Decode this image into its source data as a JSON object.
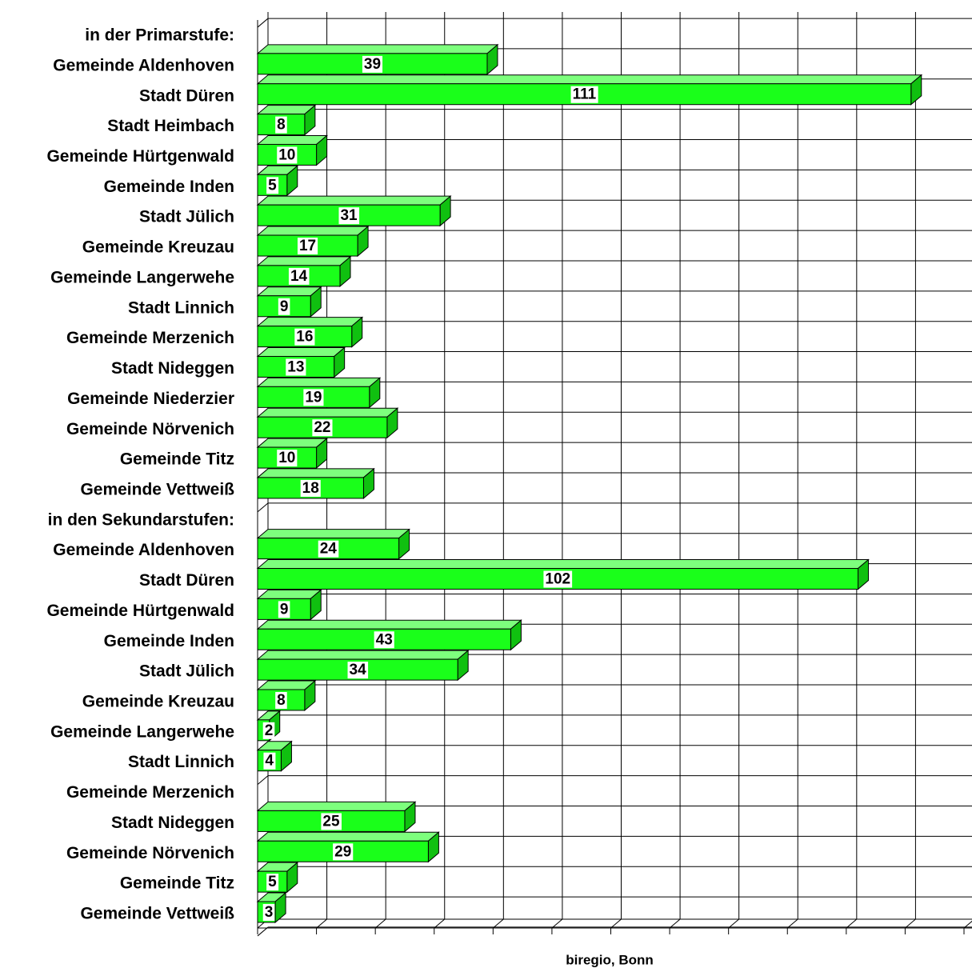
{
  "chart_data": {
    "type": "bar",
    "orientation": "horizontal",
    "categories": [
      "in der Primarstufe:",
      "Gemeinde Aldenhoven",
      "Stadt Düren",
      "Stadt Heimbach",
      "Gemeinde Hürtgenwald",
      "Gemeinde Inden",
      "Stadt Jülich",
      "Gemeinde Kreuzau",
      "Gemeinde Langerwehe",
      "Stadt Linnich",
      "Gemeinde Merzenich",
      "Stadt Nideggen",
      "Gemeinde Niederzier",
      "Gemeinde Nörvenich",
      "Gemeinde Titz",
      "Gemeinde Vettweiß",
      "in den Sekundarstufen:",
      "Gemeinde Aldenhoven",
      "Stadt Düren",
      "Gemeinde Hürtgenwald",
      "Gemeinde Inden",
      "Stadt Jülich",
      "Gemeinde Kreuzau",
      "Gemeinde Langerwehe",
      "Stadt Linnich",
      "Gemeinde Merzenich",
      "Stadt Nideggen",
      "Gemeinde Nörvenich",
      "Gemeinde Titz",
      "Gemeinde Vettweiß"
    ],
    "values": [
      null,
      39,
      111,
      8,
      10,
      5,
      31,
      17,
      14,
      9,
      16,
      13,
      19,
      22,
      10,
      18,
      null,
      24,
      102,
      9,
      43,
      34,
      8,
      2,
      4,
      null,
      25,
      29,
      5,
      3
    ],
    "color": "#1aff1a",
    "xlim": [
      0,
      120
    ],
    "xticks": [
      0,
      10,
      20,
      30,
      40,
      50,
      60,
      70,
      80,
      90,
      100,
      110,
      120
    ],
    "grid": true,
    "note": "biregio, Bonn"
  }
}
